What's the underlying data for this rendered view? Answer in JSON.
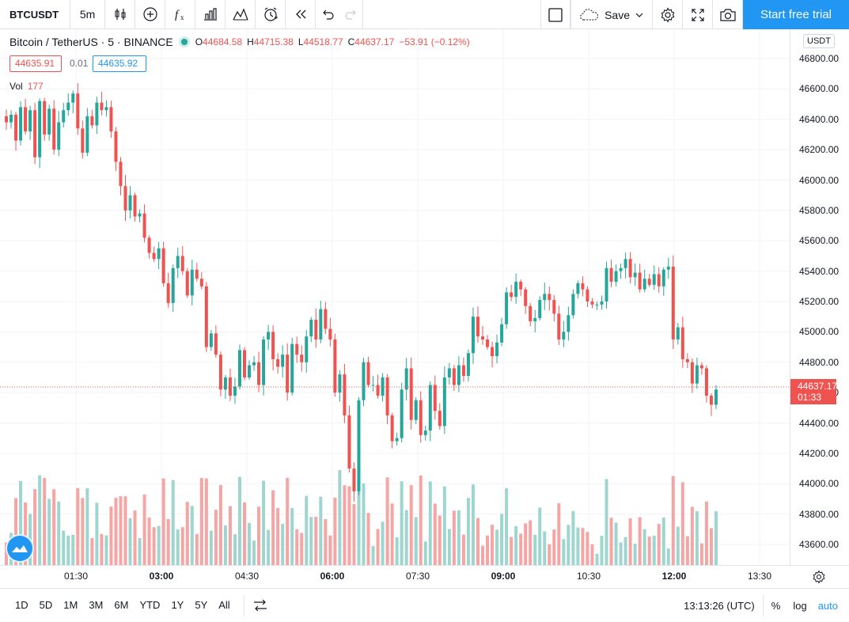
{
  "toolbar": {
    "symbol": "BTCUSDT",
    "interval": "5m",
    "save_label": "Save",
    "trial_label": "Start free trial",
    "icons": [
      "candles-icon",
      "add-indicator-icon",
      "fx-icon",
      "bar-chart-icon",
      "indicators-icon",
      "alert-icon",
      "replay-icon",
      "undo-icon",
      "redo-icon",
      "layout-icon",
      "cloud-icon",
      "settings-icon",
      "fullscreen-icon",
      "camera-icon"
    ]
  },
  "legend": {
    "title": "Bitcoin / TetherUS · 5 · BINANCE",
    "open_label": "O",
    "open": "44684.58",
    "high_label": "H",
    "high": "44715.38",
    "low_label": "L",
    "low": "44518.77",
    "close_label": "C",
    "close": "44637.17",
    "change": "−53.91 (−0.12%)",
    "status_color": "#26a69a"
  },
  "price_boxes": {
    "sell": "44635.91",
    "spread": "0.01",
    "buy": "44635.92"
  },
  "volume": {
    "label": "Vol",
    "value": "177"
  },
  "colors": {
    "up": "#26a69a",
    "down": "#ef5350",
    "up_vol": "#9fd5cf",
    "down_vol": "#f5a5a3",
    "accent": "#2196f3"
  },
  "currency": "USDT",
  "current_price": {
    "price": "44637.17",
    "countdown": "01:33"
  },
  "chart_data": {
    "type": "candlestick",
    "y_ticks": [
      "46800.00",
      "46600.00",
      "46400.00",
      "46200.00",
      "46000.00",
      "45800.00",
      "45600.00",
      "45400.00",
      "45200.00",
      "45000.00",
      "44800.00",
      "44600.00",
      "44400.00",
      "44200.00",
      "44000.00",
      "43800.00",
      "43600.00"
    ],
    "x_ticks": [
      {
        "label": "01:30",
        "bold": false
      },
      {
        "label": "03:00",
        "bold": true
      },
      {
        "label": "04:30",
        "bold": false
      },
      {
        "label": "06:00",
        "bold": true
      },
      {
        "label": "07:30",
        "bold": false
      },
      {
        "label": "09:00",
        "bold": true
      },
      {
        "label": "10:30",
        "bold": false
      },
      {
        "label": "12:00",
        "bold": true
      },
      {
        "label": "13:30",
        "bold": false
      }
    ],
    "ylim": [
      43500,
      46850
    ],
    "close_path": [
      46380,
      46430,
      46260,
      46480,
      46320,
      46460,
      46150,
      46520,
      46300,
      46470,
      46200,
      46380,
      46460,
      46510,
      46570,
      46340,
      46180,
      46420,
      46360,
      46510,
      46460,
      46480,
      46320,
      46120,
      45960,
      45800,
      45900,
      45760,
      45780,
      45620,
      45520,
      45480,
      45550,
      45320,
      45190,
      45420,
      45500,
      45400,
      45240,
      45410,
      45350,
      45300,
      44900,
      44990,
      44850,
      44620,
      44700,
      44580,
      44640,
      44880,
      44700,
      44780,
      44800,
      44650,
      44950,
      45000,
      44820,
      44770,
      44850,
      44600,
      44920,
      44850,
      44800,
      44970,
      45080,
      44950,
      45150,
      45020,
      44950,
      44600,
      44720,
      44450,
      44100,
      43950,
      44550,
      44800,
      44650,
      44650,
      44580,
      44700,
      44450,
      44280,
      44300,
      44620,
      44760,
      44420,
      44550,
      44320,
      44350,
      44650,
      44480,
      44380,
      44700,
      44760,
      44650,
      44780,
      44710,
      44860,
      45100,
      44970,
      44950,
      44900,
      44840,
      44930,
      45050,
      45260,
      45230,
      45330,
      45280,
      45170,
      45070,
      45090,
      45210,
      45250,
      45210,
      45120,
      44950,
      45000,
      45110,
      45250,
      45320,
      45280,
      45200,
      45180,
      45180,
      45200,
      45420,
      45330,
      45400,
      45420,
      45480,
      45360,
      45390,
      45280,
      45350,
      45310,
      45380,
      45300,
      45410,
      45430,
      44950,
      45030,
      44820,
      44800,
      44660,
      44780,
      44760,
      44580,
      44520,
      44620
    ]
  },
  "bottombar": {
    "ranges": [
      "1D",
      "5D",
      "1M",
      "3M",
      "6M",
      "YTD",
      "1Y",
      "5Y",
      "All"
    ],
    "time": "13:13:26 (UTC)",
    "percent": "%",
    "log": "log",
    "auto": "auto"
  }
}
